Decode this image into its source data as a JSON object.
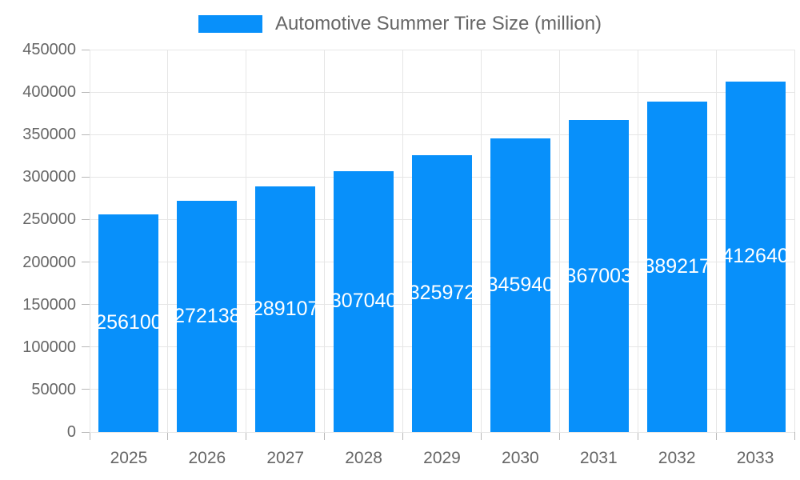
{
  "legend": {
    "label": "Automotive Summer Tire Size (million)"
  },
  "colors": {
    "bar": "#0890fa",
    "grid": "#e6e6e6",
    "tick": "#b8b8b8",
    "axis_text": "#666666",
    "bar_label_text": "#ffffff",
    "background": "#ffffff"
  },
  "chart_data": {
    "type": "bar",
    "title": "Automotive Summer Tire Size (million)",
    "categories": [
      "2025",
      "2026",
      "2027",
      "2028",
      "2029",
      "2030",
      "2031",
      "2032",
      "2033"
    ],
    "values": [
      256100,
      272138,
      289107,
      307040,
      325972,
      345940,
      367003,
      389217,
      412640
    ],
    "xlabel": "",
    "ylabel": "",
    "ylim": [
      0,
      450000
    ],
    "ytick_step": 50000,
    "ytick_labels": [
      "450000",
      "400000",
      "350000",
      "300000",
      "250000",
      "200000",
      "150000",
      "100000",
      "50000",
      "0"
    ],
    "grid": true,
    "legend_position": "top",
    "value_label_position": "inside-center"
  }
}
